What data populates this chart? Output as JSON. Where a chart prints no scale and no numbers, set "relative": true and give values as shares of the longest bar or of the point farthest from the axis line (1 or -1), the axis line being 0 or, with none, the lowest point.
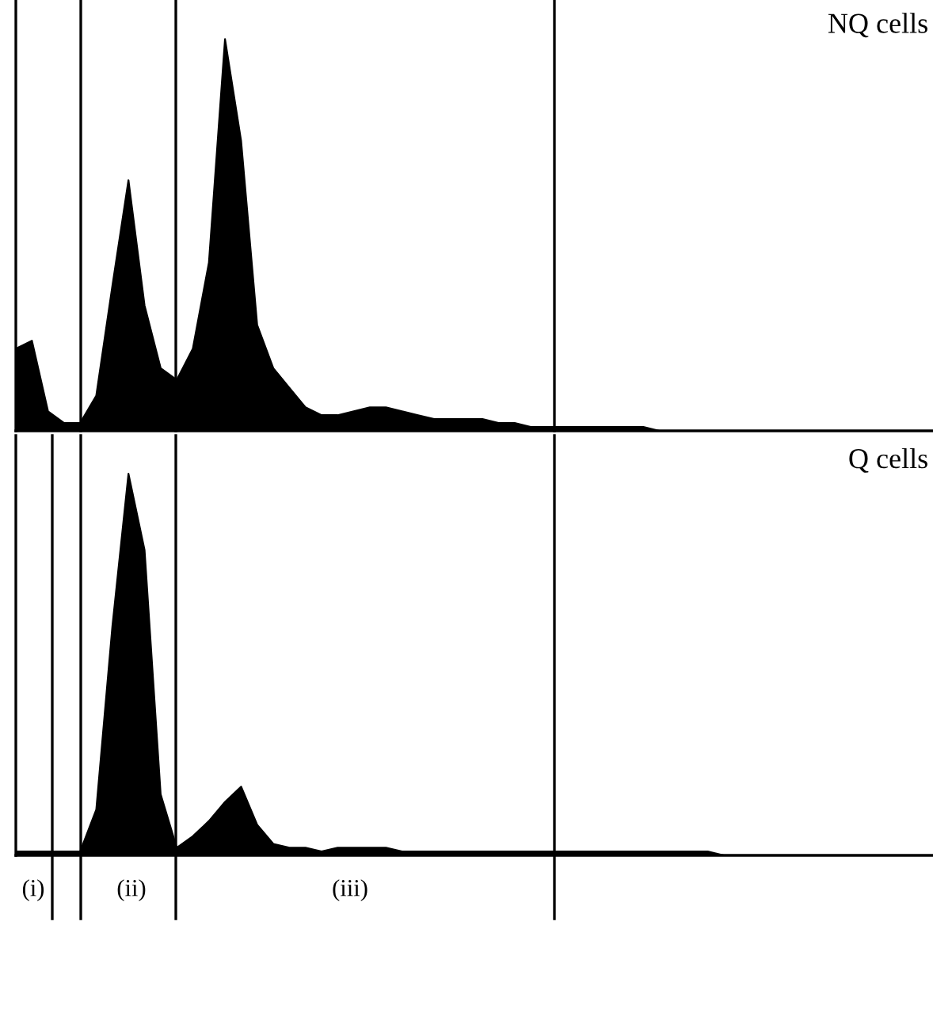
{
  "chart_data": [
    {
      "type": "area",
      "title": "NQ cells",
      "relative": true,
      "categories": [
        null,
        null,
        null,
        null,
        null,
        null,
        null,
        null,
        null,
        null,
        null,
        null,
        null,
        null,
        null,
        null,
        null,
        null,
        null,
        null,
        null,
        null,
        null,
        null,
        null,
        null,
        null,
        null,
        null,
        null,
        null,
        null,
        null,
        null,
        null,
        null,
        null,
        null,
        null,
        null,
        null,
        null,
        null,
        null,
        null,
        null,
        null,
        null,
        null,
        null,
        null,
        null,
        null,
        null,
        null,
        null,
        null,
        null
      ],
      "series": [
        {
          "color": "#000000",
          "values": [
            0.21,
            0.23,
            0.05,
            0.02,
            0.02,
            0.09,
            0.37,
            0.64,
            0.32,
            0.16,
            0.13,
            0.21,
            0.43,
            1,
            0.74,
            0.27,
            0.16,
            0.11,
            0.06,
            0.04,
            0.04,
            0.05,
            0.06,
            0.06,
            0.05,
            0.04,
            0.03,
            0.03,
            0.03,
            0.03,
            0.02,
            0.02,
            0.01,
            0.01,
            0.01,
            0.01,
            0.01,
            0.01,
            0.01,
            0.01,
            0,
            0,
            0,
            0,
            0,
            0,
            0,
            0,
            0,
            0,
            0,
            0,
            0,
            0,
            0,
            0,
            0,
            0
          ]
        }
      ]
    },
    {
      "type": "area",
      "title": "Q cells",
      "relative": true,
      "categories": [
        null,
        null,
        null,
        null,
        null,
        null,
        null,
        null,
        null,
        null,
        null,
        null,
        null,
        null,
        null,
        null,
        null,
        null,
        null,
        null,
        null,
        null,
        null,
        null,
        null,
        null,
        null,
        null,
        null,
        null,
        null,
        null,
        null,
        null,
        null,
        null,
        null,
        null,
        null,
        null,
        null,
        null,
        null,
        null,
        null,
        null,
        null,
        null,
        null,
        null,
        null,
        null,
        null,
        null,
        null,
        null,
        null,
        null
      ],
      "series": [
        {
          "color": "#000000",
          "values": [
            0.01,
            0.01,
            0.01,
            0.01,
            0.01,
            0.12,
            0.6,
            1,
            0.8,
            0.16,
            0.02,
            0.05,
            0.09,
            0.14,
            0.18,
            0.08,
            0.03,
            0.02,
            0.02,
            0.01,
            0.02,
            0.02,
            0.02,
            0.02,
            0.01,
            0.01,
            0.01,
            0.01,
            0.01,
            0.01,
            0.01,
            0.01,
            0.01,
            0.01,
            0.01,
            0.01,
            0.01,
            0.01,
            0.01,
            0.01,
            0.01,
            0.01,
            0.01,
            0.01,
            0,
            0,
            0,
            0,
            0,
            0,
            0,
            0,
            0,
            0,
            0,
            0,
            0,
            0
          ]
        }
      ],
      "annotations": [
        "(i)",
        "(ii)",
        "(iii)"
      ]
    }
  ]
}
